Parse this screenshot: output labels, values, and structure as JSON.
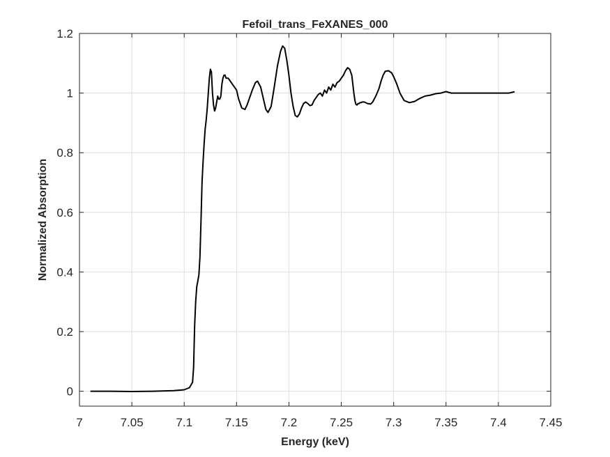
{
  "chart_data": {
    "type": "line",
    "title": "Fefoil_trans_FeXANES_000",
    "xlabel": "Energy (keV)",
    "ylabel": "Normalized Absorption",
    "xlim": [
      7.0,
      7.45
    ],
    "ylim": [
      -0.05,
      1.2
    ],
    "xticks": [
      "7",
      "7.05",
      "7.1",
      "7.15",
      "7.2",
      "7.25",
      "7.3",
      "7.35",
      "7.4",
      "7.45"
    ],
    "yticks": [
      "0",
      "0.2",
      "0.4",
      "0.6",
      "0.8",
      "1",
      "1.2"
    ],
    "grid": true,
    "legend": "none",
    "line_color": "#000000",
    "series": [
      {
        "x": [
          7.011,
          7.03,
          7.05,
          7.07,
          7.09,
          7.1,
          7.105,
          7.108,
          7.109,
          7.11,
          7.111,
          7.112,
          7.113,
          7.114,
          7.115,
          7.116,
          7.117,
          7.118,
          7.119,
          7.12,
          7.121,
          7.122,
          7.123,
          7.124,
          7.125,
          7.126,
          7.127,
          7.128,
          7.129,
          7.13,
          7.131,
          7.132,
          7.133,
          7.134,
          7.135,
          7.136,
          7.137,
          7.138,
          7.139,
          7.14,
          7.142,
          7.144,
          7.146,
          7.148,
          7.15,
          7.152,
          7.155,
          7.158,
          7.16,
          7.162,
          7.165,
          7.168,
          7.17,
          7.173,
          7.176,
          7.178,
          7.18,
          7.183,
          7.186,
          7.189,
          7.192,
          7.194,
          7.196,
          7.198,
          7.2,
          7.202,
          7.204,
          7.206,
          7.208,
          7.21,
          7.212,
          7.214,
          7.216,
          7.218,
          7.22,
          7.222,
          7.224,
          7.226,
          7.228,
          7.23,
          7.232,
          7.234,
          7.236,
          7.238,
          7.24,
          7.242,
          7.244,
          7.246,
          7.248,
          7.25,
          7.252,
          7.254,
          7.256,
          7.258,
          7.26,
          7.261,
          7.262,
          7.263,
          7.264,
          7.265,
          7.266,
          7.267,
          7.268,
          7.269,
          7.27,
          7.272,
          7.275,
          7.278,
          7.28,
          7.283,
          7.286,
          7.288,
          7.29,
          7.292,
          7.295,
          7.298,
          7.3,
          7.303,
          7.306,
          7.31,
          7.315,
          7.32,
          7.325,
          7.33,
          7.335,
          7.34,
          7.345,
          7.35,
          7.355,
          7.36,
          7.365,
          7.368,
          7.371,
          7.374,
          7.377,
          7.38,
          7.383,
          7.386,
          7.39,
          7.395,
          7.4,
          7.405,
          7.41,
          7.415
        ],
        "y": [
          0.0,
          0.0,
          -0.001,
          0.0,
          0.002,
          0.005,
          0.012,
          0.03,
          0.08,
          0.22,
          0.3,
          0.35,
          0.37,
          0.39,
          0.45,
          0.57,
          0.7,
          0.77,
          0.83,
          0.88,
          0.91,
          0.95,
          1.0,
          1.05,
          1.08,
          1.07,
          1.0,
          0.96,
          0.94,
          0.95,
          0.97,
          0.99,
          0.98,
          0.98,
          0.99,
          1.03,
          1.05,
          1.06,
          1.06,
          1.05,
          1.05,
          1.04,
          1.03,
          1.02,
          1.01,
          0.98,
          0.95,
          0.945,
          0.96,
          0.98,
          1.01,
          1.035,
          1.04,
          1.02,
          0.975,
          0.945,
          0.935,
          0.955,
          1.02,
          1.09,
          1.14,
          1.158,
          1.15,
          1.11,
          1.06,
          1.0,
          0.955,
          0.925,
          0.92,
          0.93,
          0.95,
          0.965,
          0.97,
          0.965,
          0.958,
          0.96,
          0.975,
          0.985,
          0.995,
          1.0,
          0.99,
          1.01,
          1.0,
          1.02,
          1.01,
          1.03,
          1.02,
          1.035,
          1.04,
          1.05,
          1.06,
          1.075,
          1.085,
          1.08,
          1.06,
          1.03,
          1.0,
          0.975,
          0.962,
          0.96,
          0.965,
          0.965,
          0.968,
          0.968,
          0.97,
          0.97,
          0.965,
          0.963,
          0.97,
          0.99,
          1.015,
          1.04,
          1.06,
          1.073,
          1.075,
          1.068,
          1.055,
          1.03,
          1.0,
          0.975,
          0.968,
          0.972,
          0.982,
          0.99,
          0.993,
          0.998,
          1.0,
          1.005,
          1.0,
          1.0,
          1.0,
          1.0,
          1.0,
          1.0,
          1.0,
          1.0,
          1.0,
          1.0,
          1.0,
          1.0,
          1.0,
          1.0,
          1.0,
          1.004
        ]
      }
    ]
  }
}
